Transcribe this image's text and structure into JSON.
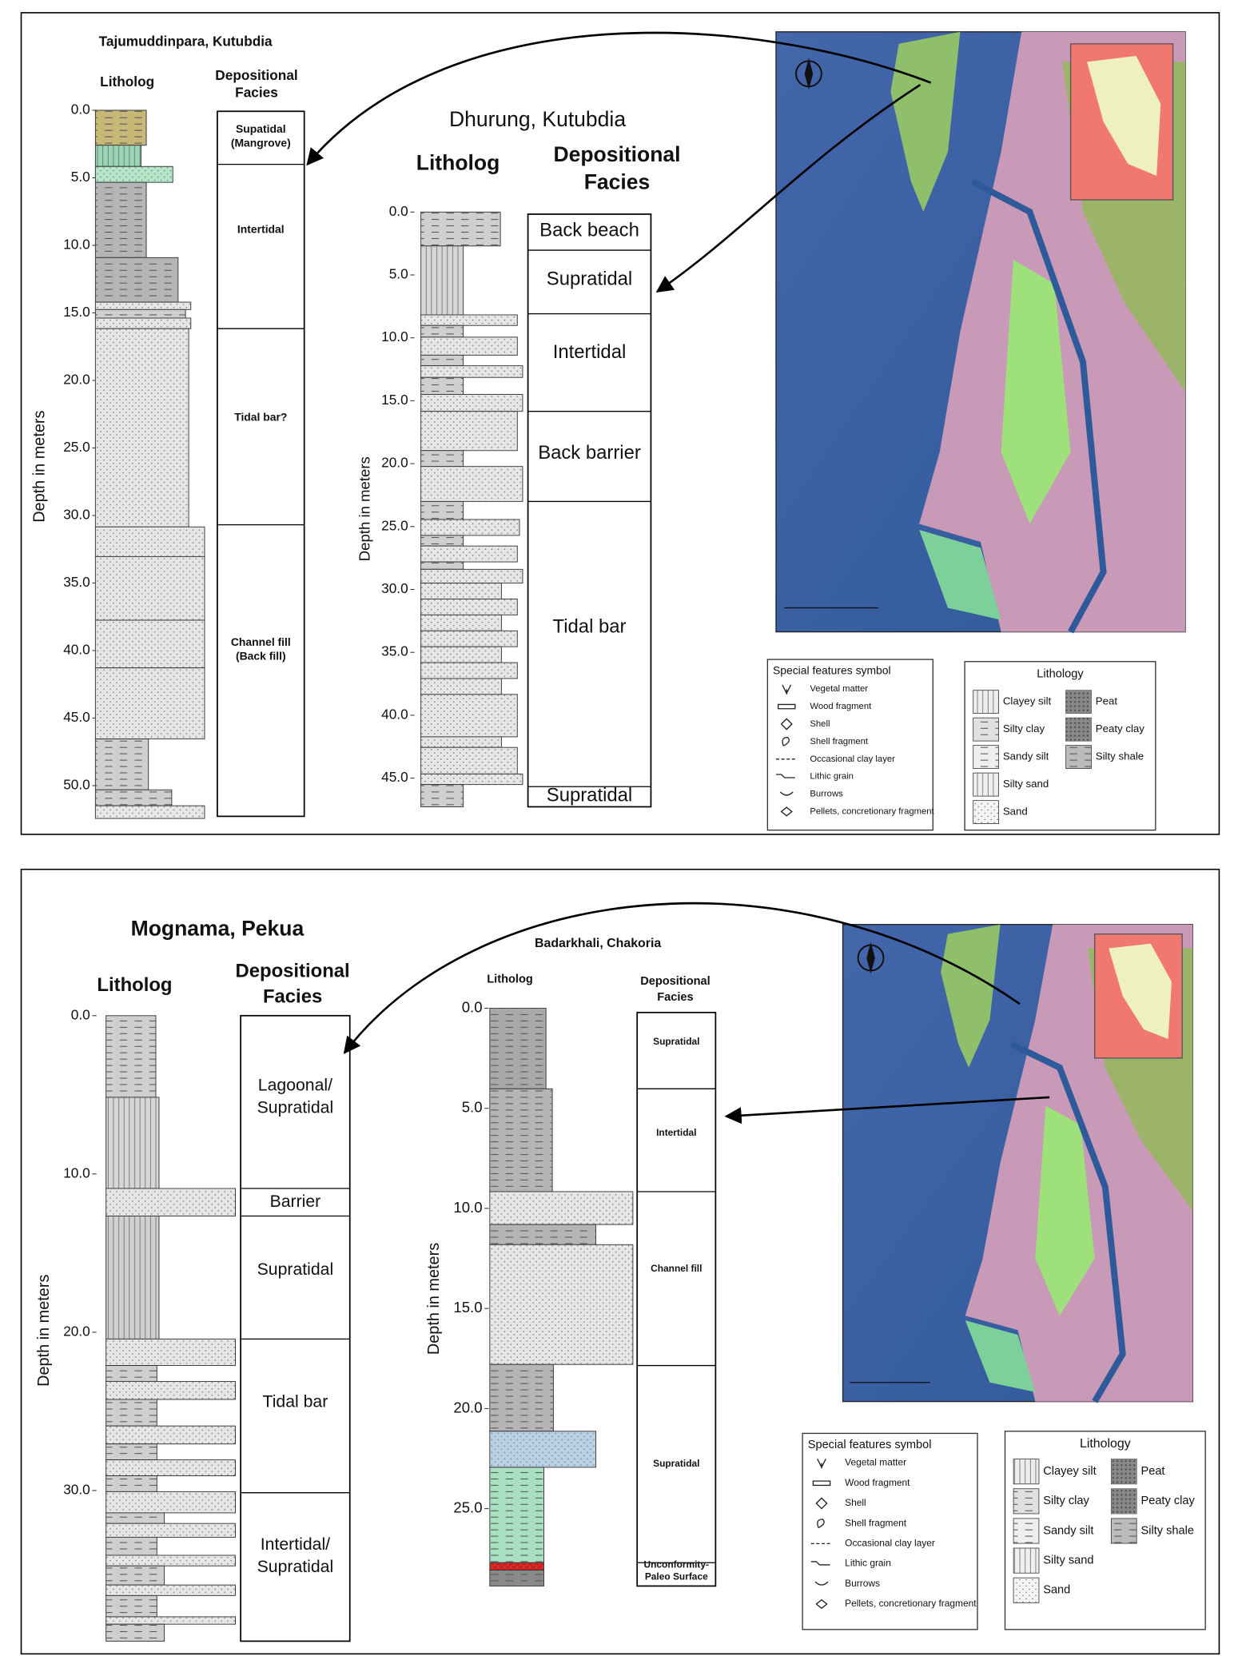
{
  "top_panel": {
    "logs": [
      {
        "title": "Tajumuddinpara, Kutubdia",
        "litholog_label": "Litholog",
        "facies_header": [
          "Depositional",
          "Facies"
        ],
        "axis_label": "Depth in meters",
        "ticks": [
          "0.0",
          "5.0",
          "10.0",
          "15.0",
          "20.0",
          "25.0",
          "30.0",
          "35.0",
          "40.0",
          "45.0",
          "50.0"
        ],
        "facies": [
          [
            "Supatidal",
            "(Mangrove)"
          ],
          [
            "Intertidal"
          ],
          [
            "Tidal bar?"
          ],
          [
            "Channel fill",
            "(Back fill)"
          ]
        ]
      },
      {
        "title": "Dhurung, Kutubdia",
        "litholog_label": "Litholog",
        "facies_header": [
          "Depositional",
          "Facies"
        ],
        "axis_label": "Depth in meters",
        "ticks": [
          "0.0",
          "5.0",
          "10.0",
          "15.0",
          "20.0",
          "25.0",
          "30.0",
          "35.0",
          "40.0",
          "45.0"
        ],
        "facies": [
          [
            "Back beach"
          ],
          [
            "Supratidal"
          ],
          [
            "Intertidal"
          ],
          [
            "Back barrier"
          ],
          [
            "Tidal bar"
          ],
          [
            "Supratidal"
          ]
        ]
      }
    ],
    "special_features": {
      "title": "Special features symbol",
      "items": [
        "Vegetal matter",
        "Wood fragment",
        "Shell",
        "Shell fragment",
        "Occasional clay layer",
        "Lithic grain",
        "Burrows",
        "Pellets, concretionary fragment"
      ]
    },
    "lithology": {
      "title": "Lithology",
      "items": [
        "Clayey silt",
        "Silty clay",
        "Sandy silt",
        "Silty sand",
        "Sand",
        "Peat",
        "Peaty clay",
        "Silty shale"
      ]
    }
  },
  "bottom_panel": {
    "logs": [
      {
        "title": "Mognama, Pekua",
        "litholog_label": "Litholog",
        "facies_header": [
          "Depositional",
          "Facies"
        ],
        "axis_label": "Depth in meters",
        "ticks": [
          "0.0",
          "10.0",
          "20.0",
          "30.0"
        ],
        "facies": [
          [
            "Lagoonal/",
            "Supratidal"
          ],
          [
            "Barrier"
          ],
          [
            "Supratidal"
          ],
          [
            "Tidal bar"
          ],
          [
            "Intertidal/",
            "Supratidal"
          ]
        ]
      },
      {
        "title": "Badarkhali, Chakoria",
        "litholog_label": "Litholog",
        "facies_header": [
          "Depositional",
          "Facies"
        ],
        "axis_label": "Depth in meters",
        "ticks": [
          "0.0",
          "5.0",
          "10.0",
          "15.0",
          "20.0",
          "25.0"
        ],
        "facies": [
          [
            "Supratidal"
          ],
          [
            "Intertidal"
          ],
          [
            "Channel fill"
          ],
          [
            "Supratidal"
          ],
          [
            "Unconformity-",
            "Paleo Surface"
          ]
        ]
      }
    ],
    "special_features": {
      "title": "Special features symbol",
      "items": [
        "Vegetal matter",
        "Wood fragment",
        "Shell",
        "Shell fragment",
        "Occasional clay layer",
        "Lithic grain",
        "Burrows",
        "Pellets, concretionary fragment"
      ]
    },
    "lithology": {
      "title": "Lithology",
      "items": [
        "Clayey silt",
        "Silty clay",
        "Sandy silt",
        "Silty sand",
        "Sand",
        "Peat",
        "Peaty clay",
        "Silty shale"
      ]
    }
  }
}
